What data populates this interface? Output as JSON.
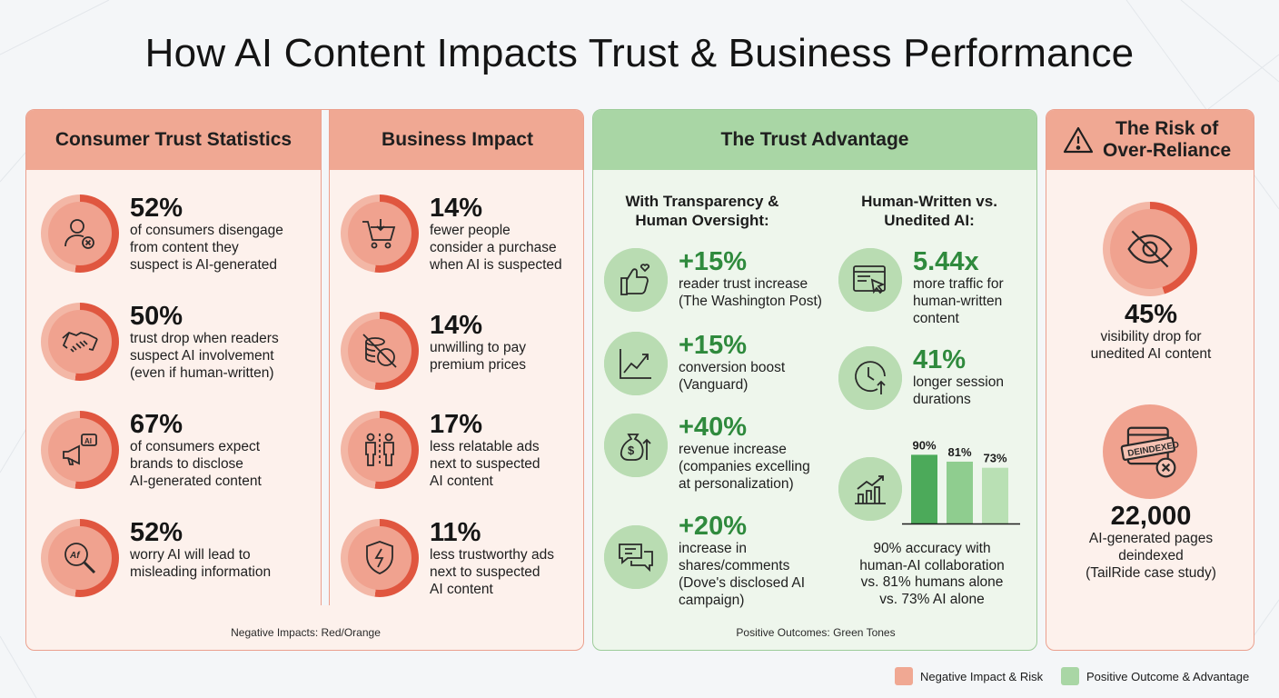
{
  "title": "How AI Content Impacts Trust & Business Performance",
  "consumer": {
    "heading": "Consumer Trust Statistics",
    "items": [
      {
        "value": "52%",
        "lines": [
          "of consumers disengage",
          "from content they",
          "suspect is AI-generated"
        ],
        "icon": "user-x-icon"
      },
      {
        "value": "50%",
        "lines": [
          "trust drop when readers",
          "suspect AI involvement",
          "(even if human-written)"
        ],
        "icon": "handshake-icon"
      },
      {
        "value": "67%",
        "lines": [
          "of consumers expect",
          "brands to disclose",
          "AI-generated content"
        ],
        "icon": "megaphone-ai-icon"
      },
      {
        "value": "52%",
        "lines": [
          "worry AI will lead to",
          "misleading information"
        ],
        "icon": "magnifier-ai-icon"
      }
    ]
  },
  "business": {
    "heading": "Business Impact",
    "items": [
      {
        "value": "14%",
        "lines": [
          "fewer people",
          "consider a purchase",
          "when AI is suspected"
        ],
        "icon": "cart-icon"
      },
      {
        "value": "14%",
        "lines": [
          "unwilling to pay",
          "premium prices"
        ],
        "icon": "coins-blocked-icon"
      },
      {
        "value": "17%",
        "lines": [
          "less relatable ads",
          "next to suspected",
          "AI content"
        ],
        "icon": "people-icon"
      },
      {
        "value": "11%",
        "lines": [
          "less trustworthy ads",
          "next to suspected",
          "AI content"
        ],
        "icon": "broken-shield-icon"
      }
    ]
  },
  "negative_footnote": "Negative Impacts: Red/Orange",
  "trust": {
    "heading": "The Trust Advantage",
    "left_heading": [
      "With Transparency &",
      "Human Oversight:"
    ],
    "right_heading": [
      "Human-Written vs.",
      "Unedited AI:"
    ],
    "left_items": [
      {
        "value": "+15%",
        "lines": [
          "reader trust increase",
          "(The Washington Post)"
        ],
        "icon": "thumbs-up-heart-icon"
      },
      {
        "value": "+15%",
        "lines": [
          "conversion boost",
          "(Vanguard)"
        ],
        "icon": "trend-up-icon"
      },
      {
        "value": "+40%",
        "lines": [
          "revenue increase",
          "(companies excelling",
          "at personalization)"
        ],
        "icon": "money-bag-icon"
      },
      {
        "value": "+20%",
        "lines": [
          "increase in",
          "shares/comments",
          "(Dove's disclosed AI",
          "campaign)"
        ],
        "icon": "chat-bubbles-icon"
      }
    ],
    "right_items": [
      {
        "value": "5.44x",
        "lines": [
          "more traffic for",
          "human-written",
          "content"
        ],
        "icon": "browser-cursor-icon"
      },
      {
        "value": "41%",
        "lines": [
          "longer session",
          "durations"
        ],
        "icon": "clock-up-icon"
      }
    ],
    "caption": [
      "90% accuracy with",
      "human-AI collaboration",
      "vs. 81% humans alone",
      "vs. 73% AI alone"
    ],
    "footnote": "Positive Outcomes: Green Tones"
  },
  "chart_data": {
    "type": "bar",
    "categories": [
      "",
      "",
      ""
    ],
    "values": [
      90,
      81,
      73
    ],
    "data_labels": [
      "90%",
      "81%",
      "73%"
    ],
    "colors": [
      "#4caa5a",
      "#8fcd8f",
      "#b9e0b4"
    ],
    "ylim": [
      0,
      100
    ]
  },
  "risk": {
    "heading": [
      "The Risk of",
      "Over-Reliance"
    ],
    "items": [
      {
        "value": "45%",
        "lines": [
          "visibility drop for",
          "unedited AI content"
        ],
        "icon": "eye-off-icon"
      },
      {
        "value": "22,000",
        "lines": [
          "AI-generated pages",
          "deindexed",
          "(TailRide case study)"
        ],
        "icon": "deindexed-icon",
        "stamp": "DEINDEXED"
      }
    ]
  },
  "legend": {
    "negative": "Negative Impact & Risk",
    "positive": "Positive Outcome & Advantage"
  },
  "colors": {
    "red_header": "#f0a893",
    "green_header": "#a9d6a5",
    "accent_red": "#e0563f",
    "accent_green": "#2f8a3d"
  }
}
